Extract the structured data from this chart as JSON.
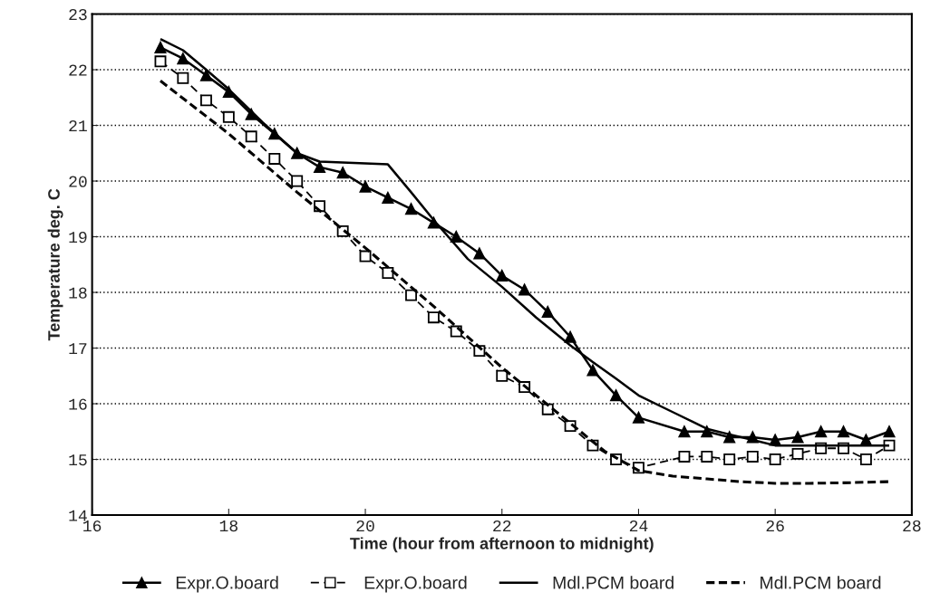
{
  "chart_data": {
    "type": "line",
    "xlabel": "Time (hour from afternoon to midnight)",
    "ylabel": "Temperature deg. C",
    "xlim": [
      16,
      28
    ],
    "xticks": [
      16,
      18,
      20,
      22,
      24,
      26,
      28
    ],
    "ylim": [
      14,
      23
    ],
    "yticks": [
      14,
      15,
      16,
      17,
      18,
      19,
      20,
      21,
      22,
      23
    ],
    "grid": "y",
    "legend": "bottom",
    "series": [
      {
        "name": "Expr.O.board",
        "color": "#000000",
        "marker": "triangle",
        "line_style": "solid",
        "x": [
          17.0,
          17.33,
          17.67,
          18.0,
          18.33,
          18.67,
          19.0,
          19.33,
          19.67,
          20.0,
          20.33,
          20.67,
          21.0,
          21.33,
          21.67,
          22.0,
          22.33,
          22.67,
          23.0,
          23.33,
          23.67,
          24.0,
          24.67,
          25.0,
          25.33,
          25.67,
          26.0,
          26.33,
          26.67,
          27.0,
          27.33,
          27.67
        ],
        "values": [
          22.4,
          22.2,
          21.9,
          21.6,
          21.2,
          20.85,
          20.5,
          20.25,
          20.15,
          19.9,
          19.7,
          19.5,
          19.25,
          19.0,
          18.7,
          18.3,
          18.05,
          17.65,
          17.2,
          16.6,
          16.15,
          15.75,
          15.5,
          15.5,
          15.4,
          15.4,
          15.35,
          15.4,
          15.5,
          15.5,
          15.35,
          15.5
        ]
      },
      {
        "name": "Expr.O.board",
        "color": "#000000",
        "marker": "square",
        "line_style": "dashed",
        "x": [
          17.0,
          17.33,
          17.67,
          18.0,
          18.33,
          18.67,
          19.0,
          19.33,
          19.67,
          20.0,
          20.33,
          20.67,
          21.0,
          21.33,
          21.67,
          22.0,
          22.33,
          22.67,
          23.0,
          23.33,
          23.67,
          24.0,
          24.67,
          25.0,
          25.33,
          25.67,
          26.0,
          26.33,
          26.67,
          27.0,
          27.33,
          27.67
        ],
        "values": [
          22.15,
          21.85,
          21.45,
          21.15,
          20.8,
          20.4,
          20.0,
          19.55,
          19.1,
          18.65,
          18.35,
          17.95,
          17.55,
          17.3,
          16.95,
          16.5,
          16.3,
          15.9,
          15.6,
          15.25,
          15.0,
          14.85,
          15.05,
          15.05,
          15.0,
          15.05,
          15.0,
          15.1,
          15.2,
          15.2,
          15.0,
          15.25
        ]
      },
      {
        "name": "Mdl.PCM board",
        "color": "#000000",
        "marker": "none",
        "line_style": "solid",
        "x": [
          17.0,
          17.33,
          17.67,
          18.0,
          18.5,
          19.0,
          19.33,
          20.33,
          20.67,
          21.0,
          21.5,
          22.0,
          22.5,
          23.0,
          23.33,
          23.67,
          24.0,
          24.5,
          25.0,
          25.33,
          25.67,
          26.0,
          26.5,
          27.0,
          27.67
        ],
        "values": [
          22.55,
          22.35,
          22.0,
          21.65,
          21.05,
          20.5,
          20.35,
          20.3,
          19.8,
          19.3,
          18.6,
          18.1,
          17.55,
          17.05,
          16.75,
          16.45,
          16.15,
          15.85,
          15.55,
          15.45,
          15.35,
          15.25,
          15.25,
          15.25,
          15.25
        ]
      },
      {
        "name": "Mdl.PCM board",
        "color": "#000000",
        "marker": "none",
        "line_style": "dotted",
        "x": [
          17.0,
          18.0,
          19.0,
          20.0,
          21.0,
          22.0,
          23.0,
          23.5,
          24.0,
          24.5,
          25.0,
          25.5,
          26.0,
          26.5,
          27.0,
          27.67
        ],
        "values": [
          21.8,
          20.85,
          19.8,
          18.8,
          17.75,
          16.65,
          15.65,
          15.15,
          14.8,
          14.7,
          14.65,
          14.6,
          14.57,
          14.57,
          14.58,
          14.6
        ]
      }
    ]
  }
}
